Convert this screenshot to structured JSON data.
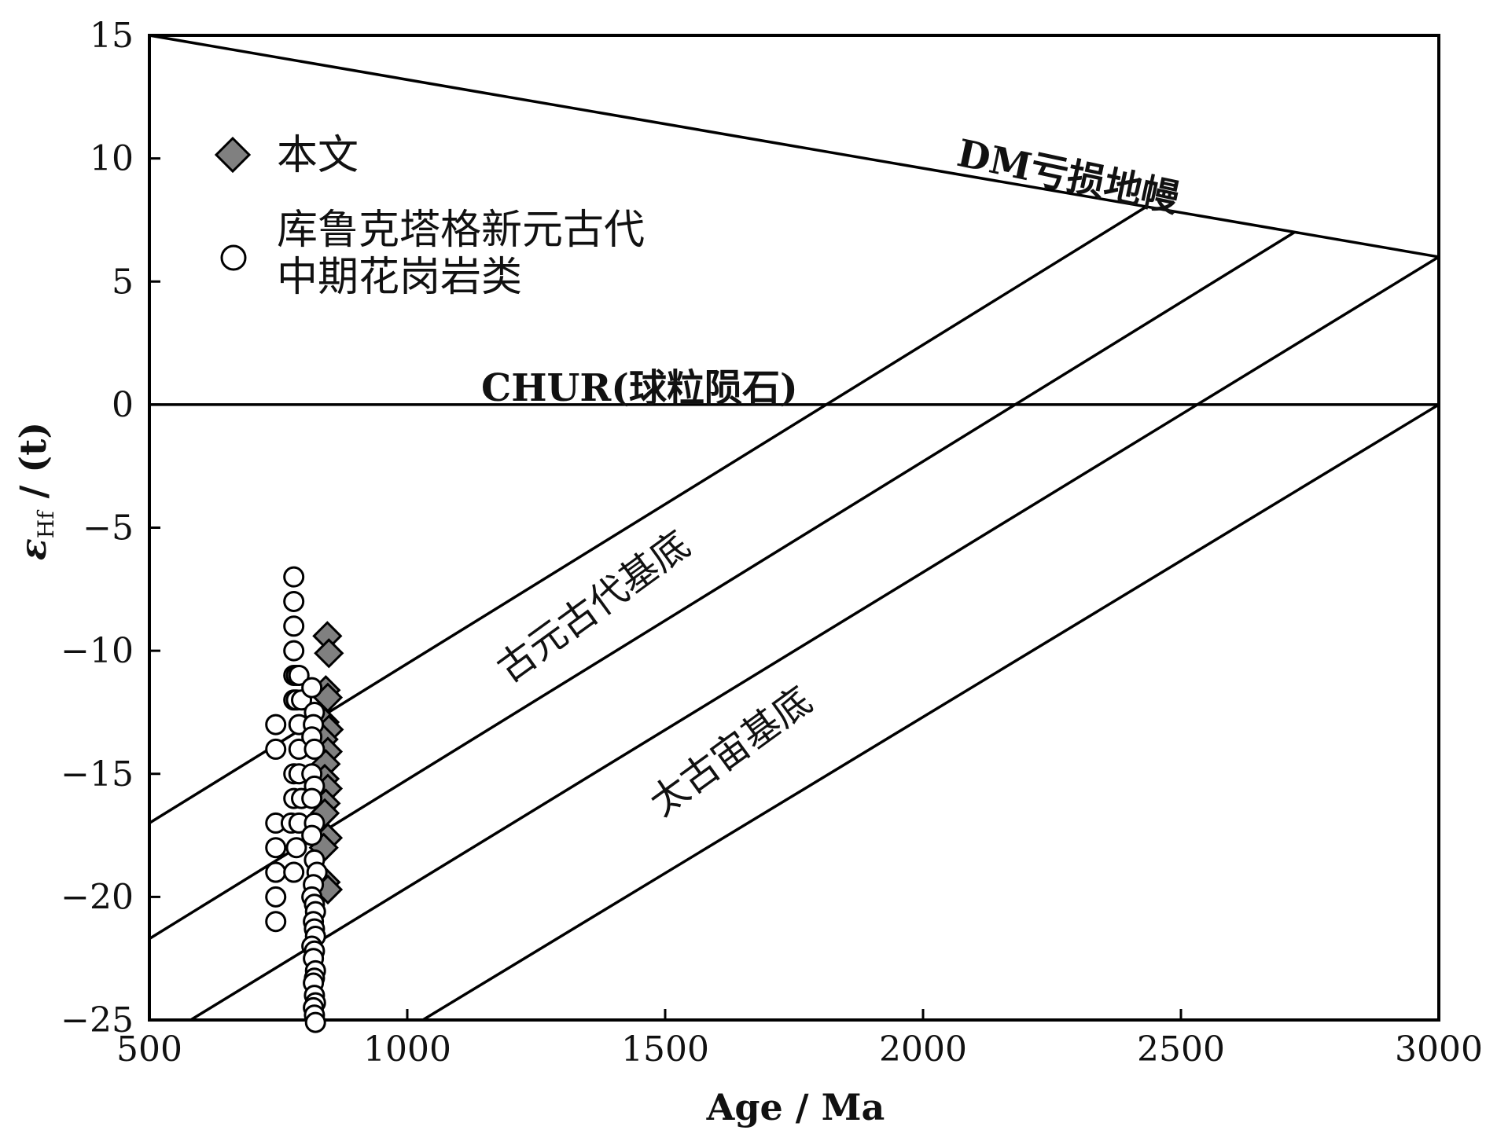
{
  "chart_data": {
    "type": "scatter",
    "xlabel": "Age / Ma",
    "ylabel": {
      "main": "ε",
      "sub": "Hf",
      "tail": " / (t)"
    },
    "xlim": [
      500,
      3000
    ],
    "ylim": [
      -25,
      15
    ],
    "xticks": [
      500,
      1000,
      1500,
      2000,
      2500,
      3000
    ],
    "yticks": [
      15,
      10,
      5,
      0,
      -5,
      -10,
      -15,
      -20,
      -25
    ],
    "grid": false,
    "legend_position": "top-left",
    "series": [
      {
        "name": "本文",
        "marker": "diamond",
        "color": "#808080",
        "points": [
          [
            845,
            -9.4
          ],
          [
            848,
            -10.1
          ],
          [
            842,
            -11.6
          ],
          [
            846,
            -11.9
          ],
          [
            840,
            -12.9
          ],
          [
            848,
            -13.2
          ],
          [
            838,
            -13.6
          ],
          [
            846,
            -14.1
          ],
          [
            842,
            -14.6
          ],
          [
            840,
            -15.2
          ],
          [
            846,
            -15.6
          ],
          [
            842,
            -16.2
          ],
          [
            840,
            -16.6
          ],
          [
            846,
            -17.6
          ],
          [
            838,
            -18.0
          ],
          [
            842,
            -19.4
          ],
          [
            846,
            -19.7
          ]
        ]
      },
      {
        "name": "库鲁克塔格新元古代中期花岗岩类",
        "marker": "circle",
        "color": "#ffffff",
        "points": [
          [
            780,
            -7
          ],
          [
            780,
            -8
          ],
          [
            780,
            -9
          ],
          [
            780,
            -10
          ],
          [
            780,
            -11
          ],
          [
            785,
            -11
          ],
          [
            780,
            -12
          ],
          [
            785,
            -12
          ],
          [
            790,
            -11
          ],
          [
            795,
            -12
          ],
          [
            745,
            -13
          ],
          [
            790,
            -13
          ],
          [
            745,
            -14
          ],
          [
            790,
            -14
          ],
          [
            780,
            -15
          ],
          [
            790,
            -15
          ],
          [
            780,
            -16
          ],
          [
            795,
            -16
          ],
          [
            745,
            -17
          ],
          [
            775,
            -17
          ],
          [
            790,
            -17
          ],
          [
            745,
            -18
          ],
          [
            785,
            -18
          ],
          [
            745,
            -19
          ],
          [
            780,
            -19
          ],
          [
            745,
            -20
          ],
          [
            745,
            -21
          ],
          [
            815,
            -11.5
          ],
          [
            820,
            -12.5
          ],
          [
            818,
            -13
          ],
          [
            815,
            -13.5
          ],
          [
            820,
            -14
          ],
          [
            815,
            -15
          ],
          [
            820,
            -15.5
          ],
          [
            815,
            -16
          ],
          [
            820,
            -17
          ],
          [
            815,
            -17.5
          ],
          [
            820,
            -18.5
          ],
          [
            825,
            -19
          ],
          [
            818,
            -19.5
          ],
          [
            815,
            -20
          ],
          [
            820,
            -20.3
          ],
          [
            822,
            -20.6
          ],
          [
            818,
            -21
          ],
          [
            820,
            -21.3
          ],
          [
            822,
            -21.6
          ],
          [
            815,
            -22
          ],
          [
            820,
            -22.2
          ],
          [
            818,
            -22.5
          ],
          [
            822,
            -23
          ],
          [
            820,
            -23.3
          ],
          [
            818,
            -23.5
          ],
          [
            820,
            -24
          ],
          [
            822,
            -24.3
          ],
          [
            818,
            -24.5
          ],
          [
            820,
            -24.8
          ],
          [
            822,
            -25.1
          ]
        ]
      }
    ],
    "reference_lines": [
      {
        "name": "DM",
        "points": [
          [
            500,
            15
          ],
          [
            3000,
            6
          ]
        ]
      },
      {
        "name": "CHUR",
        "points": [
          [
            500,
            0
          ],
          [
            3000,
            0
          ]
        ]
      },
      {
        "name": "crust-1",
        "points": [
          [
            500,
            -17
          ],
          [
            2430,
            8
          ]
        ]
      },
      {
        "name": "crust-2",
        "points": [
          [
            500,
            -21.7
          ],
          [
            2720,
            7
          ]
        ]
      },
      {
        "name": "crust-3",
        "points": [
          [
            580,
            -25
          ],
          [
            3000,
            6
          ]
        ]
      },
      {
        "name": "crust-4",
        "points": [
          [
            1030,
            -25
          ],
          [
            3000,
            0
          ]
        ]
      }
    ],
    "annotations": {
      "dm": "DM亏损地幔",
      "chur": "CHUR(球粒陨石)",
      "paleoproterozoic": "古元古代基底",
      "archean": "太古宙基底"
    }
  },
  "legend": {
    "item1": "本文",
    "item2_line1": "库鲁克塔格新元古代",
    "item2_line2": "中期花岗岩类"
  }
}
